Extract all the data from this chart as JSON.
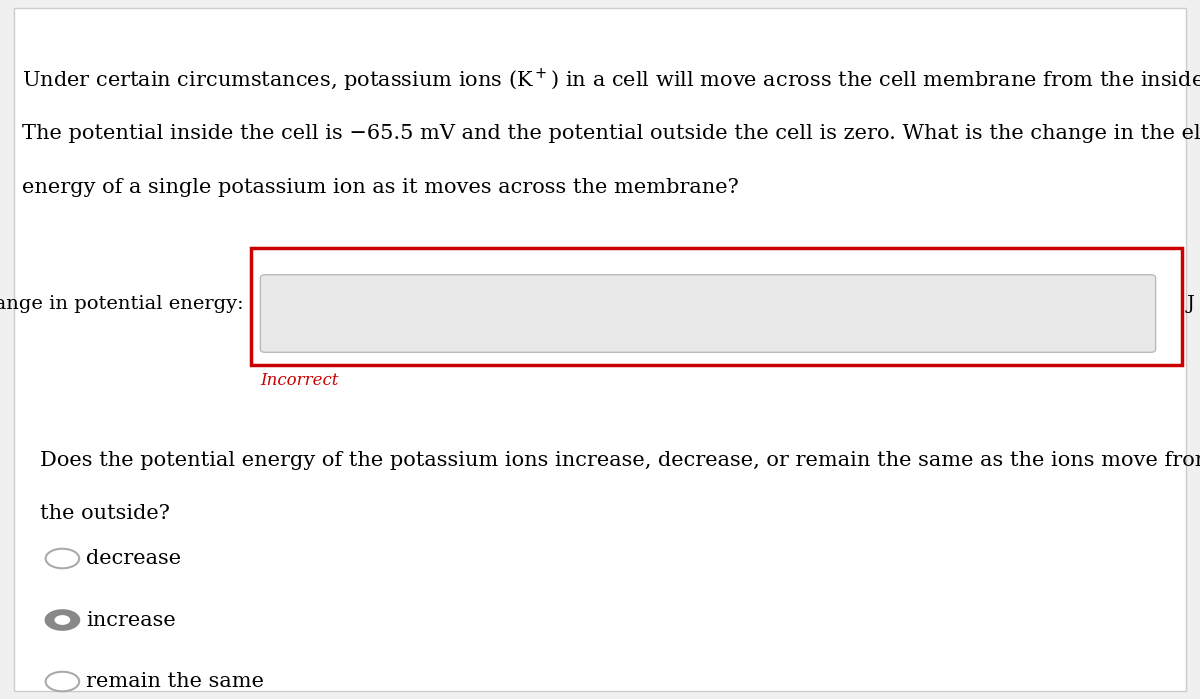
{
  "background_color": "#f0f0f0",
  "content_bg": "#ffffff",
  "line1_text": "Under certain circumstances, potassium ions (K$^+$) in a cell will move across the cell membrane from the inside to the outside.",
  "line2_text": "The potential inside the cell is −65.5 mV and the potential outside the cell is zero. What is the change in the electrical potential",
  "line3_text": "energy of a single potassium ion as it moves across the membrane?",
  "label_text": "change in potential energy:",
  "unit_text": "J",
  "incorrect_text": "Incorrect",
  "incorrect_color": "#cc0000",
  "input_box_color": "#e8e8e8",
  "input_border_color": "#bbbbbb",
  "red_border_color": "#cc0000",
  "question2_line1": "Does the potential energy of the potassium ions increase, decrease, or remain the same as the ions move from the inside to",
  "question2_line2": "the outside?",
  "options": [
    "decrease",
    "increase",
    "remain the same"
  ],
  "selected_option": 1,
  "font_size_text": 15,
  "font_size_label": 14,
  "font_family": "serif"
}
